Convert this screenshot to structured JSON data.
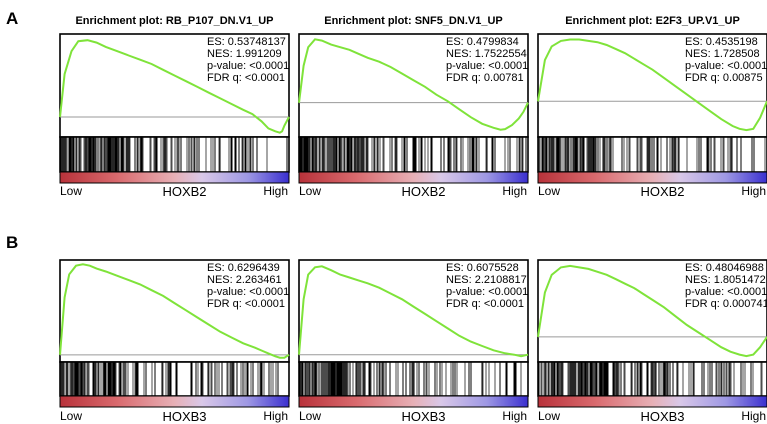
{
  "panel_labels": [
    "A",
    "B"
  ],
  "stat_labels": {
    "es": "ES: ",
    "nes": "NES: ",
    "p": "p-value: ",
    "fdr": "FDR q: "
  },
  "low_label": "Low",
  "high_label": "High",
  "colors": {
    "curve": "#7fe33a",
    "frame": "#000000",
    "zero_line": "#9a9a9a",
    "gradient": [
      "#b8323a",
      "#d96a6e",
      "#e7b0b6",
      "#d9c8e8",
      "#9e98e4",
      "#3a2fcf"
    ]
  },
  "chart_data": [
    {
      "type": "line",
      "row": 0,
      "col": 0,
      "title": "Enrichment plot: RB_P107_DN.V1_UP",
      "gene": "HOXB2",
      "stats": {
        "es": "0.53748137",
        "nes": "1.991209",
        "p": "<0.0001",
        "fdr": "<0.0001"
      },
      "x": [
        0,
        2,
        5,
        8,
        12,
        16,
        20,
        25,
        30,
        35,
        40,
        45,
        50,
        55,
        60,
        65,
        70,
        75,
        80,
        84,
        88,
        91,
        94,
        96,
        97,
        98,
        100
      ],
      "y": [
        0,
        0.3,
        0.46,
        0.53,
        0.537,
        0.52,
        0.49,
        0.46,
        0.43,
        0.4,
        0.37,
        0.33,
        0.29,
        0.25,
        0.21,
        0.17,
        0.13,
        0.09,
        0.05,
        0.02,
        -0.03,
        -0.08,
        -0.1,
        -0.11,
        -0.1,
        -0.06,
        0
      ],
      "ylim": [
        -0.14,
        0.58
      ],
      "grid": false
    },
    {
      "type": "line",
      "row": 0,
      "col": 1,
      "title": "Enrichment plot: SNF5_DN.V1_UP",
      "gene": "HOXB2",
      "stats": {
        "es": "0.4799834",
        "nes": "1.7522554",
        "p": "<0.0001",
        "fdr": "0.00781"
      },
      "x": [
        0,
        2,
        4,
        7,
        10,
        14,
        18,
        22,
        26,
        30,
        35,
        40,
        45,
        50,
        55,
        60,
        65,
        70,
        75,
        80,
        85,
        88,
        90,
        93,
        96,
        98,
        100
      ],
      "y": [
        0,
        0.28,
        0.42,
        0.48,
        0.47,
        0.44,
        0.42,
        0.4,
        0.37,
        0.34,
        0.31,
        0.27,
        0.22,
        0.17,
        0.12,
        0.06,
        0.01,
        -0.05,
        -0.11,
        -0.16,
        -0.19,
        -0.205,
        -0.2,
        -0.17,
        -0.12,
        -0.07,
        0
      ],
      "ylim": [
        -0.26,
        0.52
      ],
      "grid": false
    },
    {
      "type": "line",
      "row": 0,
      "col": 2,
      "title": "Enrichment plot: E2F3_UP.V1_UP",
      "gene": "HOXB2",
      "stats": {
        "es": "0.4535198",
        "nes": "1.728508",
        "p": "<0.0001",
        "fdr": "0.00875"
      },
      "x": [
        0,
        3,
        6,
        10,
        14,
        18,
        22,
        26,
        30,
        34,
        38,
        42,
        46,
        50,
        55,
        60,
        65,
        70,
        75,
        80,
        85,
        88,
        91,
        94,
        97,
        100
      ],
      "y": [
        0,
        0.3,
        0.4,
        0.44,
        0.45,
        0.45,
        0.44,
        0.43,
        0.41,
        0.38,
        0.35,
        0.31,
        0.27,
        0.23,
        0.17,
        0.11,
        0.05,
        -0.01,
        -0.07,
        -0.13,
        -0.18,
        -0.2,
        -0.21,
        -0.2,
        -0.12,
        0
      ],
      "ylim": [
        -0.26,
        0.49
      ],
      "grid": false
    },
    {
      "type": "line",
      "row": 1,
      "col": 0,
      "title": "Enrichment plot: RB_P107_DN.V1_UP",
      "gene": "HOXB3",
      "stats": {
        "es": "0.6296439",
        "nes": "2.263461",
        "p": "<0.0001",
        "fdr": "<0.0001"
      },
      "x": [
        0,
        2,
        4,
        7,
        10,
        13,
        16,
        20,
        25,
        30,
        35,
        40,
        45,
        50,
        55,
        60,
        65,
        70,
        75,
        80,
        85,
        88,
        91,
        94,
        96,
        98,
        100
      ],
      "y": [
        0,
        0.4,
        0.56,
        0.62,
        0.63,
        0.62,
        0.6,
        0.58,
        0.55,
        0.52,
        0.49,
        0.45,
        0.41,
        0.36,
        0.31,
        0.26,
        0.21,
        0.16,
        0.12,
        0.08,
        0.05,
        0.03,
        0.01,
        -0.01,
        -0.02,
        -0.02,
        0
      ],
      "ylim": [
        -0.05,
        0.66
      ],
      "grid": false
    },
    {
      "type": "line",
      "row": 1,
      "col": 1,
      "title": "Enrichment plot: SNF5_DN.V1_UP",
      "gene": "HOXB3",
      "stats": {
        "es": "0.6075528",
        "nes": "2.2108817",
        "p": "<0.0001",
        "fdr": "<0.0001"
      },
      "x": [
        0,
        2,
        4,
        7,
        10,
        14,
        18,
        22,
        26,
        30,
        35,
        40,
        45,
        50,
        55,
        60,
        65,
        70,
        75,
        80,
        85,
        90,
        94,
        97,
        100
      ],
      "y": [
        0,
        0.38,
        0.55,
        0.6,
        0.607,
        0.58,
        0.55,
        0.53,
        0.51,
        0.49,
        0.46,
        0.42,
        0.38,
        0.33,
        0.28,
        0.23,
        0.18,
        0.13,
        0.09,
        0.06,
        0.03,
        0.01,
        0.0,
        -0.01,
        0
      ],
      "ylim": [
        -0.05,
        0.65
      ],
      "grid": false
    },
    {
      "type": "line",
      "row": 1,
      "col": 2,
      "title": "Enrichment plot: E2F3_UP.V1_UP",
      "gene": "HOXB3",
      "stats": {
        "es": "0.48046988",
        "nes": "1.8051472",
        "p": "<0.0001",
        "fdr": "0.000741"
      },
      "x": [
        0,
        3,
        6,
        10,
        14,
        18,
        22,
        26,
        30,
        34,
        38,
        42,
        46,
        50,
        55,
        60,
        65,
        70,
        75,
        80,
        84,
        88,
        91,
        94,
        97,
        100
      ],
      "y": [
        0,
        0.3,
        0.42,
        0.47,
        0.48,
        0.47,
        0.46,
        0.44,
        0.42,
        0.39,
        0.36,
        0.33,
        0.29,
        0.25,
        0.2,
        0.14,
        0.08,
        0.03,
        -0.02,
        -0.07,
        -0.1,
        -0.12,
        -0.13,
        -0.12,
        -0.07,
        0
      ],
      "ylim": [
        -0.17,
        0.52
      ],
      "grid": false
    }
  ]
}
